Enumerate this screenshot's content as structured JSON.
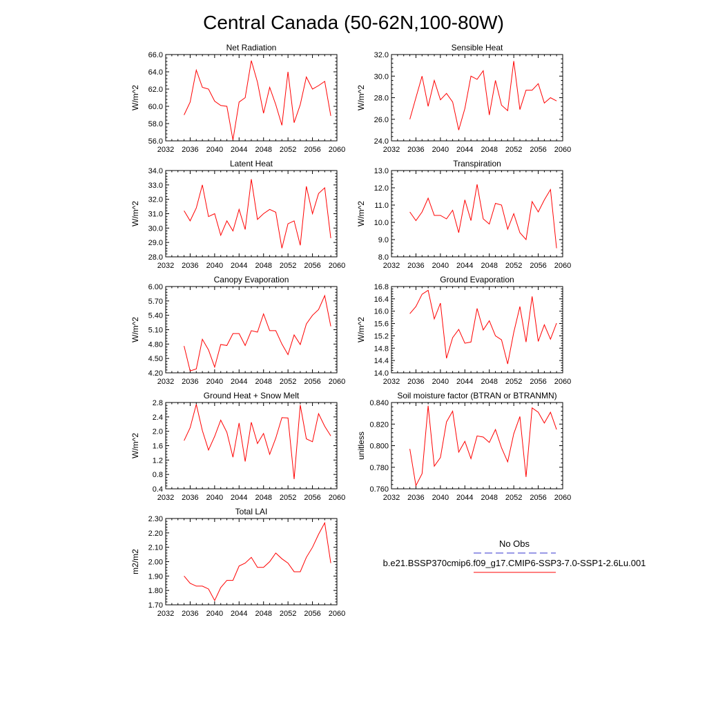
{
  "figure": {
    "title": "Central Canada (50-62N,100-80W)"
  },
  "series_color": "#ff0000",
  "obs_color": "#3333cc",
  "legend": {
    "items": [
      {
        "label": "No Obs",
        "color": "#3333cc",
        "style": "dashed"
      },
      {
        "label": "b.e21.BSSP370cmip6.f09_g17.CMIP6-SSP3-7.0-SSP1-2.6Lu.001",
        "color": "#ff0000",
        "style": "solid"
      }
    ]
  },
  "chart_data": [
    {
      "type": "line",
      "title": "Net Radiation",
      "ylabel": "W/m^2",
      "xlim": [
        2032,
        2060
      ],
      "ylim": [
        56.0,
        66.0
      ],
      "xticks": [
        2032,
        2036,
        2040,
        2044,
        2048,
        2052,
        2056,
        2060
      ],
      "yticks": [
        "56.0",
        "58.0",
        "60.0",
        "62.0",
        "64.0",
        "66.0"
      ],
      "x": [
        2035,
        2036,
        2037,
        2038,
        2039,
        2040,
        2041,
        2042,
        2043,
        2044,
        2045,
        2046,
        2047,
        2048,
        2049,
        2050,
        2051,
        2052,
        2053,
        2054,
        2055,
        2056,
        2057,
        2058,
        2059
      ],
      "values": [
        59.0,
        60.5,
        64.2,
        62.2,
        62.0,
        60.6,
        60.1,
        60.0,
        56.1,
        60.5,
        61.0,
        65.3,
        62.8,
        59.2,
        62.2,
        60.2,
        57.8,
        64.0,
        58.1,
        60.2,
        63.4,
        62.0,
        62.4,
        62.9,
        58.9
      ]
    },
    {
      "type": "line",
      "title": "Sensible Heat",
      "ylabel": "W/m^2",
      "xlim": [
        2032,
        2060
      ],
      "ylim": [
        24.0,
        32.0
      ],
      "xticks": [
        2032,
        2036,
        2040,
        2044,
        2048,
        2052,
        2056,
        2060
      ],
      "yticks": [
        "24.0",
        "26.0",
        "28.0",
        "30.0",
        "32.0"
      ],
      "x": [
        2035,
        2036,
        2037,
        2038,
        2039,
        2040,
        2041,
        2042,
        2043,
        2044,
        2045,
        2046,
        2047,
        2048,
        2049,
        2050,
        2051,
        2052,
        2053,
        2054,
        2055,
        2056,
        2057,
        2058,
        2059
      ],
      "values": [
        26.0,
        28.0,
        30.0,
        27.2,
        29.6,
        27.8,
        28.4,
        27.6,
        25.0,
        27.0,
        30.0,
        29.7,
        30.5,
        26.4,
        29.6,
        27.3,
        26.8,
        31.4,
        26.9,
        28.7,
        28.7,
        29.3,
        27.5,
        28.0,
        27.7
      ]
    },
    {
      "type": "line",
      "title": "Latent Heat",
      "ylabel": "W/m^2",
      "xlim": [
        2032,
        2060
      ],
      "ylim": [
        28.0,
        34.0
      ],
      "xticks": [
        2032,
        2036,
        2040,
        2044,
        2048,
        2052,
        2056,
        2060
      ],
      "yticks": [
        "28.0",
        "29.0",
        "30.0",
        "31.0",
        "32.0",
        "33.0",
        "34.0"
      ],
      "x": [
        2035,
        2036,
        2037,
        2038,
        2039,
        2040,
        2041,
        2042,
        2043,
        2044,
        2045,
        2046,
        2047,
        2048,
        2049,
        2050,
        2051,
        2052,
        2053,
        2054,
        2055,
        2056,
        2057,
        2058,
        2059
      ],
      "values": [
        31.2,
        30.5,
        31.4,
        33.0,
        30.8,
        31.0,
        29.5,
        30.5,
        29.8,
        31.3,
        29.9,
        33.4,
        30.6,
        31.0,
        31.3,
        31.1,
        28.6,
        30.3,
        30.5,
        28.8,
        32.9,
        31.0,
        32.4,
        32.8,
        29.3
      ]
    },
    {
      "type": "line",
      "title": "Transpiration",
      "ylabel": "W/m^2",
      "xlim": [
        2032,
        2060
      ],
      "ylim": [
        8.0,
        13.0
      ],
      "xticks": [
        2032,
        2036,
        2040,
        2044,
        2048,
        2052,
        2056,
        2060
      ],
      "yticks": [
        "8.0",
        "9.0",
        "10.0",
        "11.0",
        "12.0",
        "13.0"
      ],
      "x": [
        2035,
        2036,
        2037,
        2038,
        2039,
        2040,
        2041,
        2042,
        2043,
        2044,
        2045,
        2046,
        2047,
        2048,
        2049,
        2050,
        2051,
        2052,
        2053,
        2054,
        2055,
        2056,
        2057,
        2058,
        2059
      ],
      "values": [
        10.6,
        10.1,
        10.6,
        11.4,
        10.4,
        10.4,
        10.2,
        10.7,
        9.4,
        11.3,
        10.1,
        12.2,
        10.2,
        9.9,
        11.1,
        11.0,
        9.6,
        10.5,
        9.4,
        9.0,
        11.2,
        10.6,
        11.3,
        11.9,
        8.5
      ]
    },
    {
      "type": "line",
      "title": "Canopy Evaporation",
      "ylabel": "W/m^2",
      "xlim": [
        2032,
        2060
      ],
      "ylim": [
        4.2,
        6.0
      ],
      "xticks": [
        2032,
        2036,
        2040,
        2044,
        2048,
        2052,
        2056,
        2060
      ],
      "yticks": [
        "4.20",
        "4.50",
        "4.80",
        "5.10",
        "5.40",
        "5.70",
        "6.00"
      ],
      "x": [
        2035,
        2036,
        2037,
        2038,
        2039,
        2040,
        2041,
        2042,
        2043,
        2044,
        2045,
        2046,
        2047,
        2048,
        2049,
        2050,
        2051,
        2052,
        2053,
        2054,
        2055,
        2056,
        2057,
        2058,
        2059
      ],
      "values": [
        4.76,
        4.24,
        4.28,
        4.9,
        4.68,
        4.32,
        4.79,
        4.77,
        5.02,
        5.02,
        4.77,
        5.08,
        5.05,
        5.43,
        5.08,
        5.08,
        4.8,
        4.58,
        4.99,
        4.79,
        5.22,
        5.4,
        5.52,
        5.81,
        5.17
      ]
    },
    {
      "type": "line",
      "title": "Ground Evaporation",
      "ylabel": "W/m^2",
      "xlim": [
        2032,
        2060
      ],
      "ylim": [
        14.0,
        16.8
      ],
      "xticks": [
        2032,
        2036,
        2040,
        2044,
        2048,
        2052,
        2056,
        2060
      ],
      "yticks": [
        "14.0",
        "14.4",
        "14.8",
        "15.2",
        "15.6",
        "16.0",
        "16.4",
        "16.8"
      ],
      "x": [
        2035,
        2036,
        2037,
        2038,
        2039,
        2040,
        2041,
        2042,
        2043,
        2044,
        2045,
        2046,
        2047,
        2048,
        2049,
        2050,
        2051,
        2052,
        2053,
        2054,
        2055,
        2056,
        2057,
        2058,
        2059
      ],
      "values": [
        15.92,
        16.15,
        16.55,
        16.68,
        15.75,
        16.26,
        14.47,
        15.14,
        15.41,
        14.96,
        15.0,
        16.09,
        15.39,
        15.69,
        15.2,
        15.07,
        14.29,
        15.31,
        16.15,
        15.0,
        16.48,
        15.02,
        15.56,
        15.09,
        15.61
      ]
    },
    {
      "type": "line",
      "title": "Ground Heat + Snow Melt",
      "ylabel": "W/m^2",
      "xlim": [
        2032,
        2060
      ],
      "ylim": [
        0.4,
        2.8
      ],
      "xticks": [
        2032,
        2036,
        2040,
        2044,
        2048,
        2052,
        2056,
        2060
      ],
      "yticks": [
        "0.4",
        "0.8",
        "1.2",
        "1.6",
        "2.0",
        "2.4",
        "2.8"
      ],
      "x": [
        2035,
        2036,
        2037,
        2038,
        2039,
        2040,
        2041,
        2042,
        2043,
        2044,
        2045,
        2046,
        2047,
        2048,
        2049,
        2050,
        2051,
        2052,
        2053,
        2054,
        2055,
        2056,
        2057,
        2058,
        2059
      ],
      "values": [
        1.74,
        2.1,
        2.75,
        2.02,
        1.48,
        1.86,
        2.31,
        1.97,
        1.28,
        2.23,
        1.16,
        2.25,
        1.66,
        1.94,
        1.36,
        1.81,
        2.38,
        2.37,
        0.67,
        2.73,
        1.79,
        1.71,
        2.49,
        2.14,
        1.87
      ]
    },
    {
      "type": "line",
      "title": "Soil moisture factor (BTRAN or BTRANMN)",
      "ylabel": "unitless",
      "xlim": [
        2032,
        2060
      ],
      "ylim": [
        0.76,
        0.84
      ],
      "xticks": [
        2032,
        2036,
        2040,
        2044,
        2048,
        2052,
        2056,
        2060
      ],
      "yticks": [
        "0.760",
        "0.780",
        "0.800",
        "0.820",
        "0.840"
      ],
      "x": [
        2035,
        2036,
        2037,
        2038,
        2039,
        2040,
        2041,
        2042,
        2043,
        2044,
        2045,
        2046,
        2047,
        2048,
        2049,
        2050,
        2051,
        2052,
        2053,
        2054,
        2055,
        2056,
        2057,
        2058,
        2059
      ],
      "values": [
        0.797,
        0.763,
        0.774,
        0.837,
        0.781,
        0.789,
        0.822,
        0.832,
        0.794,
        0.804,
        0.788,
        0.809,
        0.808,
        0.803,
        0.815,
        0.798,
        0.785,
        0.811,
        0.827,
        0.771,
        0.835,
        0.831,
        0.821,
        0.831,
        0.815
      ]
    },
    {
      "type": "line",
      "title": "Total LAI",
      "ylabel": "m2/m2",
      "xlim": [
        2032,
        2060
      ],
      "ylim": [
        1.7,
        2.3
      ],
      "xticks": [
        2032,
        2036,
        2040,
        2044,
        2048,
        2052,
        2056,
        2060
      ],
      "yticks": [
        "1.70",
        "1.80",
        "1.90",
        "2.00",
        "2.10",
        "2.20",
        "2.30"
      ],
      "x": [
        2035,
        2036,
        2037,
        2038,
        2039,
        2040,
        2041,
        2042,
        2043,
        2044,
        2045,
        2046,
        2047,
        2048,
        2049,
        2050,
        2051,
        2052,
        2053,
        2054,
        2055,
        2056,
        2057,
        2058,
        2059
      ],
      "values": [
        1.9,
        1.85,
        1.83,
        1.83,
        1.81,
        1.73,
        1.82,
        1.87,
        1.87,
        1.97,
        1.99,
        2.03,
        1.96,
        1.96,
        2.0,
        2.06,
        2.02,
        1.99,
        1.93,
        1.93,
        2.03,
        2.1,
        2.19,
        2.27,
        1.99
      ]
    }
  ]
}
